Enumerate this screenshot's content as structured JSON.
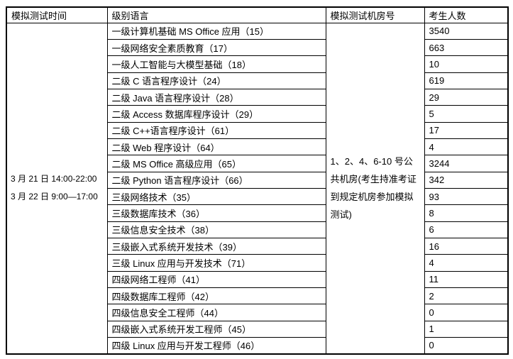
{
  "colors": {
    "background": "#ffffff",
    "border": "#000000",
    "text": "#000000"
  },
  "table": {
    "headers": [
      "模拟测试时间",
      "级别语言",
      "模拟测试机房号",
      "考生人数"
    ],
    "time_lines": [
      "3 月 21 日 14:00-22:00",
      "3 月 22 日 9:00—17:00"
    ],
    "room_note": "1、2、4、6-10 号公共机房(考生持准考证到规定机房参加模拟测试)",
    "rows": [
      {
        "subject": "一级计算机基础 MS Office 应用（15）",
        "count": "3540"
      },
      {
        "subject": "一级网络安全素质教育（17）",
        "count": "663"
      },
      {
        "subject": "一级人工智能与大模型基础（18）",
        "count": "10"
      },
      {
        "subject": "二级 C 语言程序设计（24）",
        "count": "619"
      },
      {
        "subject": "二级 Java 语言程序设计（28）",
        "count": "29"
      },
      {
        "subject": "二级 Access 数据库程序设计（29）",
        "count": "5"
      },
      {
        "subject": "二级 C++语言程序设计（61）",
        "count": "17"
      },
      {
        "subject": "二级 Web 程序设计（64）",
        "count": "4"
      },
      {
        "subject": "二级 MS Office 高级应用（65）",
        "count": "3244"
      },
      {
        "subject": "二级 Python 语言程序设计（66）",
        "count": "342"
      },
      {
        "subject": "三级网络技术（35）",
        "count": "93"
      },
      {
        "subject": "三级数据库技术（36）",
        "count": "8"
      },
      {
        "subject": "三级信息安全技术（38）",
        "count": "6"
      },
      {
        "subject": "三级嵌入式系统开发技术（39）",
        "count": "16"
      },
      {
        "subject": "三级 Linux 应用与开发技术（71）",
        "count": "4"
      },
      {
        "subject": "四级网络工程师（41）",
        "count": "11"
      },
      {
        "subject": "四级数据库工程师（42）",
        "count": "2"
      },
      {
        "subject": "四级信息安全工程师（44）",
        "count": "0"
      },
      {
        "subject": "四级嵌入式系统开发工程师（45）",
        "count": "1"
      },
      {
        "subject": "四级 Linux 应用与开发工程师（46）",
        "count": "0"
      }
    ]
  }
}
